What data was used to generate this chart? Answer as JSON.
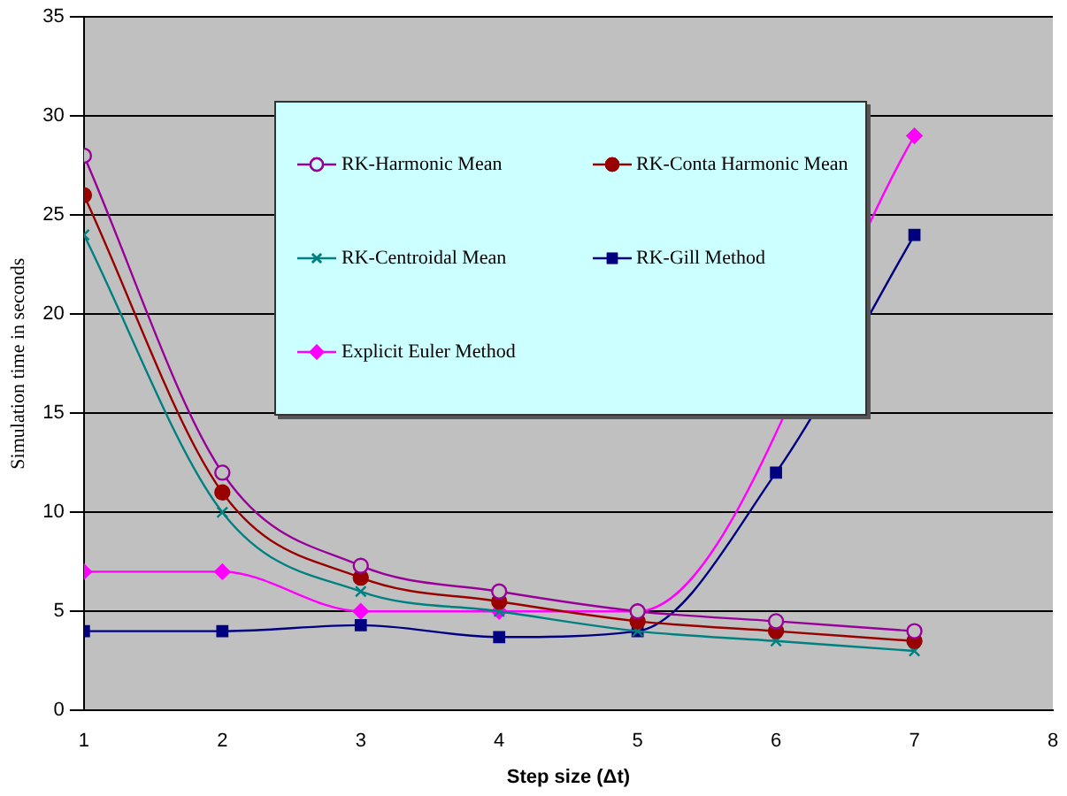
{
  "chart_data": {
    "type": "line",
    "xlabel": "Step size (Δt)",
    "ylabel": "Simulation time in seconds",
    "x": [
      1,
      2,
      3,
      4,
      5,
      6,
      7
    ],
    "xlim": [
      1,
      8
    ],
    "xticks": [
      1,
      2,
      3,
      4,
      5,
      6,
      7,
      8
    ],
    "ylim": [
      0,
      35
    ],
    "yticks": [
      0,
      5,
      10,
      15,
      20,
      25,
      30,
      35
    ],
    "grid": "y",
    "legend": "top",
    "series": [
      {
        "name": "RK-Harmonic Mean",
        "color": "#990099",
        "marker": "circle",
        "values": [
          28,
          12,
          7.3,
          6,
          5,
          4.5,
          4
        ]
      },
      {
        "name": "RK-Conta Harmonic Mean",
        "color": "#990000",
        "marker": "circle",
        "values": [
          26,
          11,
          6.7,
          5.5,
          4.5,
          4,
          3.5
        ]
      },
      {
        "name": "RK-Centroidal Mean",
        "color": "#008080",
        "marker": "cross",
        "values": [
          24,
          10,
          6,
          5,
          4,
          3.5,
          3
        ]
      },
      {
        "name": "RK-Gill Method",
        "color": "#000080",
        "marker": "square",
        "values": [
          4,
          4,
          4.3,
          3.7,
          4,
          12,
          24
        ]
      },
      {
        "name": "Explicit Euler Method",
        "color": "#ff00ff",
        "marker": "diamond",
        "values": [
          7,
          7,
          5,
          5,
          5,
          null,
          29
        ]
      }
    ]
  }
}
